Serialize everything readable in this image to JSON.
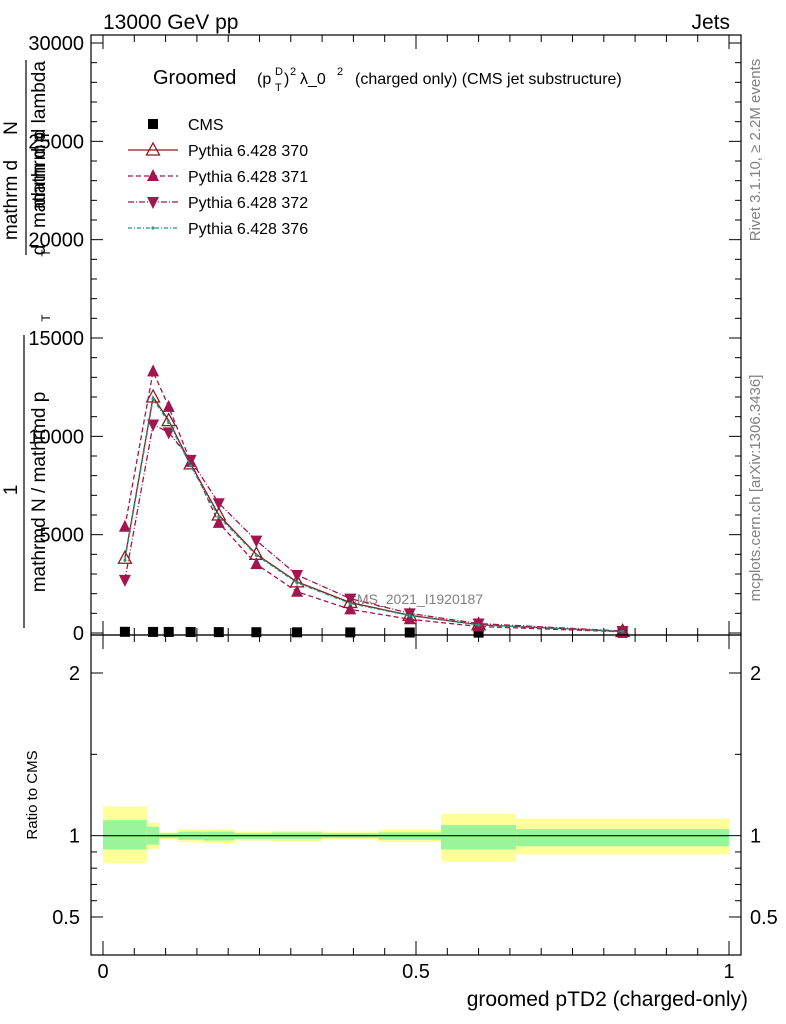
{
  "header": {
    "left": "13000 GeV pp",
    "right": "Jets"
  },
  "side_labels": {
    "rivet": "Rivet 3.1.10, ≥ 2.2M events",
    "mcplots": "mcplots.cern.ch [arXiv:1306.3436]"
  },
  "watermark": "CMS_2021_I1920187",
  "main_title": {
    "prefix": "Groomed",
    "p": "(p",
    "sup_d": "D",
    "sub_t": "T",
    "close": ")",
    "sq": "2",
    "lambda": "λ_0",
    "sq2": "2",
    "suffix": "(charged only) (CMS jet substructure)"
  },
  "ylabel": {
    "num_1": "mathrm d",
    "num_N": "N",
    "num_2": "mathrm d p",
    "num_T": "T",
    "num_3": "mathrm d lambda",
    "one": "1",
    "den": "mathrmd N / mathrmd p",
    "den_T": "T",
    "den_2": "d"
  },
  "ratio_ylabel": "Ratio to CMS",
  "xlabel": "groomed pTD2 (charged-only)",
  "colors": {
    "cms": "#000000",
    "p370": "#8b1a1a",
    "p371": "#a3154f",
    "p372": "#a3154f",
    "p376": "#1a9e80",
    "band_inner": "#99f599",
    "band_outer": "#ffff99"
  },
  "chart_data": {
    "type": "line",
    "xlim": [
      0,
      1
    ],
    "ylim": [
      0,
      30000
    ],
    "ratio_ylim": [
      0.35,
      2.3
    ],
    "main_ticks": [
      {
        "v": 0,
        "label": "0"
      },
      {
        "v": 5000,
        "label": "5000"
      },
      {
        "v": 10000,
        "label": "10000"
      },
      {
        "v": 15000,
        "label": "15000"
      },
      {
        "v": 20000,
        "label": "20000"
      },
      {
        "v": 25000,
        "label": "25000"
      },
      {
        "v": 30000,
        "label": "30000"
      }
    ],
    "ratio_ticks": [
      {
        "v": 0.5,
        "label": "0.5"
      },
      {
        "v": 1,
        "label": "1"
      },
      {
        "v": 2,
        "label": "2"
      }
    ],
    "x_ticks": [
      {
        "v": 0,
        "label": "0"
      },
      {
        "v": 0.5,
        "label": "0.5"
      },
      {
        "v": 1,
        "label": "1"
      }
    ],
    "series": [
      {
        "name": "CMS",
        "x": [
          0.035,
          0.08,
          0.105,
          0.14,
          0.185,
          0.245,
          0.31,
          0.395,
          0.49,
          0.6,
          0.83
        ],
        "y": [
          60,
          55,
          55,
          50,
          45,
          40,
          35,
          30,
          25,
          20,
          15
        ]
      },
      {
        "name": "Pythia 6.428 370",
        "x": [
          0.035,
          0.08,
          0.105,
          0.14,
          0.185,
          0.245,
          0.31,
          0.395,
          0.49,
          0.6,
          0.83
        ],
        "y": [
          3800,
          12000,
          10800,
          8600,
          6000,
          4000,
          2600,
          1550,
          900,
          420,
          80
        ]
      },
      {
        "name": "Pythia 6.428 371",
        "x": [
          0.035,
          0.08,
          0.105,
          0.14,
          0.185,
          0.245,
          0.31,
          0.395,
          0.49,
          0.6,
          0.83
        ],
        "y": [
          5400,
          13300,
          11500,
          8700,
          5600,
          3500,
          2100,
          1200,
          700,
          330,
          60
        ]
      },
      {
        "name": "Pythia 6.428 372",
        "x": [
          0.035,
          0.08,
          0.105,
          0.14,
          0.185,
          0.245,
          0.31,
          0.395,
          0.49,
          0.6,
          0.83
        ],
        "y": [
          2700,
          10600,
          10200,
          8800,
          6600,
          4700,
          2950,
          1750,
          1000,
          480,
          100
        ]
      },
      {
        "name": "Pythia 6.428 376",
        "x": [
          0.035,
          0.08,
          0.105,
          0.14,
          0.185,
          0.245,
          0.31,
          0.395,
          0.49,
          0.6,
          0.83
        ],
        "y": [
          3700,
          11900,
          10700,
          8500,
          5900,
          3950,
          2550,
          1500,
          880,
          410,
          80
        ]
      }
    ],
    "ratio_band": [
      {
        "x0": 0.0,
        "x1": 0.07,
        "inner": [
          0.915,
          1.095
        ],
        "outer": [
          0.83,
          1.18
        ]
      },
      {
        "x0": 0.07,
        "x1": 0.09,
        "inner": [
          0.945,
          1.055
        ],
        "outer": [
          0.92,
          1.08
        ]
      },
      {
        "x0": 0.09,
        "x1": 0.12,
        "inner": [
          0.985,
          1.015
        ],
        "outer": [
          0.975,
          1.02
        ]
      },
      {
        "x0": 0.12,
        "x1": 0.16,
        "inner": [
          0.975,
          1.025
        ],
        "outer": [
          0.96,
          1.04
        ]
      },
      {
        "x0": 0.16,
        "x1": 0.21,
        "inner": [
          0.97,
          1.025
        ],
        "outer": [
          0.955,
          1.04
        ]
      },
      {
        "x0": 0.21,
        "x1": 0.27,
        "inner": [
          0.98,
          1.015
        ],
        "outer": [
          0.97,
          1.025
        ]
      },
      {
        "x0": 0.27,
        "x1": 0.35,
        "inner": [
          0.98,
          1.02
        ],
        "outer": [
          0.965,
          1.03
        ]
      },
      {
        "x0": 0.35,
        "x1": 0.44,
        "inner": [
          0.985,
          1.015
        ],
        "outer": [
          0.975,
          1.025
        ]
      },
      {
        "x0": 0.44,
        "x1": 0.54,
        "inner": [
          0.975,
          1.02
        ],
        "outer": [
          0.96,
          1.035
        ]
      },
      {
        "x0": 0.54,
        "x1": 0.66,
        "inner": [
          0.915,
          1.065
        ],
        "outer": [
          0.84,
          1.135
        ]
      },
      {
        "x0": 0.66,
        "x1": 1.0,
        "inner": [
          0.935,
          1.04
        ],
        "outer": [
          0.885,
          1.105
        ]
      }
    ]
  }
}
